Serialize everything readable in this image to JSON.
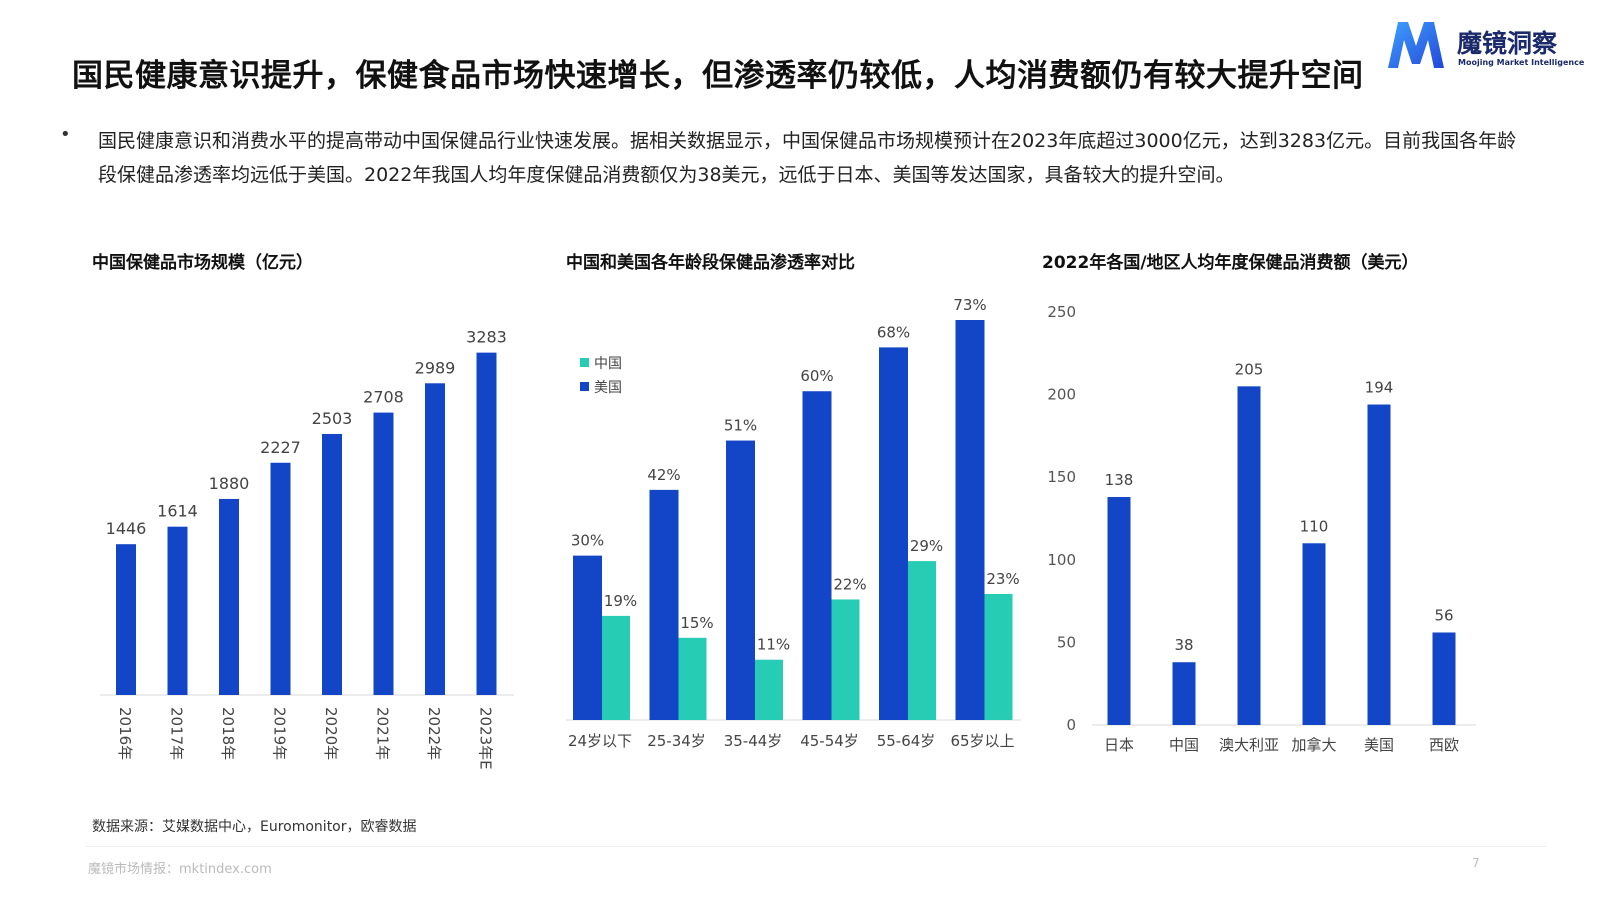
{
  "header": {
    "title": "国民健康意识提升，保健食品市场快速增长，但渗透率仍较低，人均消费额仍有较大提升空间",
    "logo_name": "魔镜洞察",
    "logo_sub": "Moojing Market Intelligence"
  },
  "summary": {
    "bullet": "•",
    "text": "国民健康意识和消费水平的提高带动中国保健品行业快速发展。据相关数据显示，中国保健品市场规模预计在2023年底超过3000亿元，达到3283亿元。目前我国各年龄段保健品渗透率均远低于美国。2022年我国人均年度保健品消费额仅为38美元，远低于日本、美国等发达国家，具备较大的提升空间。"
  },
  "colors": {
    "blue": "#1346c6",
    "teal": "#26cdb4"
  },
  "chart_data": [
    {
      "type": "bar",
      "title": "中国保健品市场规模（亿元）",
      "categories": [
        "2016年",
        "2017年",
        "2018年",
        "2019年",
        "2020年",
        "2021年",
        "2022年",
        "2023年E"
      ],
      "values": [
        1446,
        1614,
        1880,
        2227,
        2503,
        2708,
        2989,
        3283
      ],
      "value_labels": [
        "1446",
        "1614",
        "1880",
        "2227",
        "2503",
        "2708",
        "2989",
        "3283"
      ],
      "ylim": [
        0,
        3500
      ],
      "y_axis_shown": false,
      "grid": false
    },
    {
      "type": "bar",
      "title": "中国和美国各年龄段保健品渗透率对比",
      "categories": [
        "24岁以下",
        "25-34岁",
        "35-44岁",
        "45-54岁",
        "55-64岁",
        "65岁以上"
      ],
      "series": [
        {
          "name": "美国",
          "values": [
            30,
            42,
            51,
            60,
            68,
            73
          ],
          "value_labels": [
            "30%",
            "42%",
            "51%",
            "60%",
            "68%",
            "73%"
          ]
        },
        {
          "name": "中国",
          "values": [
            19,
            15,
            11,
            22,
            29,
            23
          ],
          "value_labels": [
            "19%",
            "15%",
            "11%",
            "22%",
            "29%",
            "23%"
          ]
        }
      ],
      "legend": {
        "position": "top-left",
        "items": [
          "中国",
          "美国"
        ]
      },
      "ylim": [
        0,
        80
      ],
      "grid": false
    },
    {
      "type": "bar",
      "title": "2022年各国/地区人均年度保健品消费额（美元）",
      "categories": [
        "日本",
        "中国",
        "澳大利亚",
        "加拿大",
        "美国",
        "西欧"
      ],
      "values": [
        138,
        38,
        205,
        110,
        194,
        56
      ],
      "value_labels": [
        "138",
        "38",
        "205",
        "110",
        "194",
        "56"
      ],
      "ylim": [
        0,
        250
      ],
      "yticks": [
        "0",
        "50",
        "100",
        "150",
        "200",
        "250"
      ],
      "grid": false
    }
  ],
  "footer": {
    "source": "数据来源：艾媒数据中心，Euromonitor，欧睿数据",
    "site": "魔镜市场情报：mktindex.com",
    "page_number": "7"
  }
}
